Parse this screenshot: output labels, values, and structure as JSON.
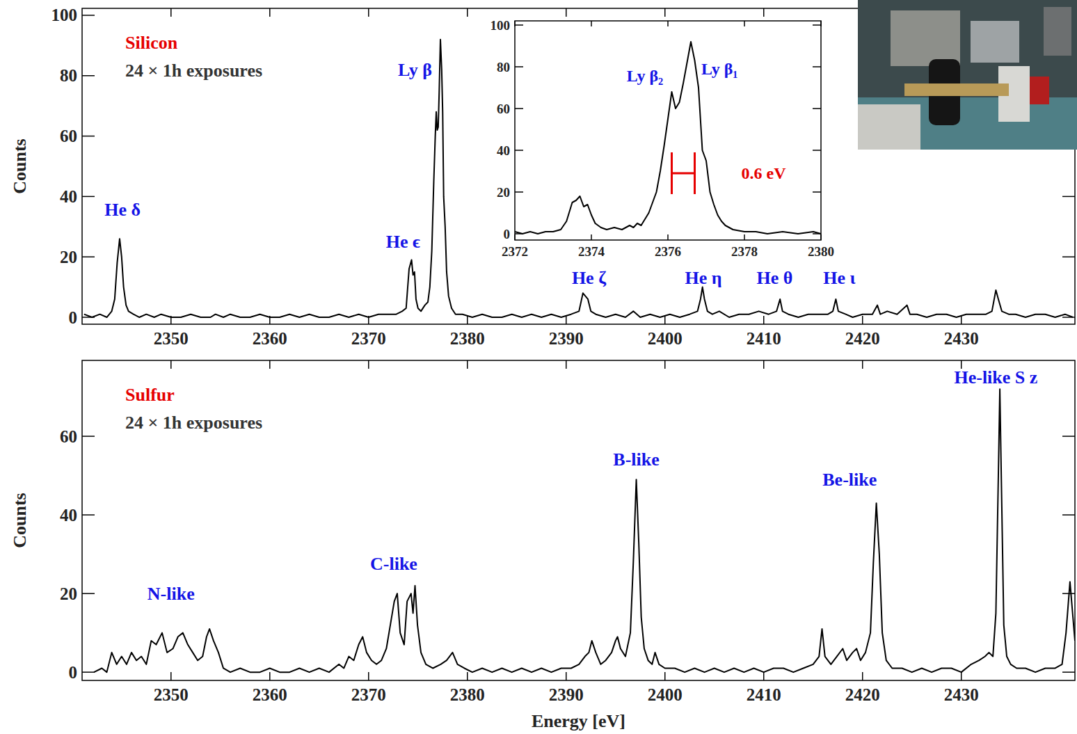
{
  "chart_data": [
    {
      "type": "line",
      "title": "Silicon",
      "subtitle": "24 × 1h exposures",
      "y_label": "Counts",
      "color": "#000000",
      "xlim": [
        2341,
        2441.5
      ],
      "ylim": [
        -2.3,
        102.3
      ],
      "xticks": [
        2350,
        2360,
        2370,
        2380,
        2390,
        2400,
        2410,
        2420,
        2430
      ],
      "yticks": [
        0,
        20,
        40,
        60,
        80,
        100
      ],
      "x": [
        2341.2,
        2342,
        2342.8,
        2343.5,
        2344.0,
        2344.3,
        2344.55,
        2344.8,
        2345.0,
        2345.2,
        2345.45,
        2345.7,
        2346.2,
        2346.8,
        2347.5,
        2348.3,
        2349,
        2350,
        2351,
        2352,
        2353,
        2354,
        2354.5,
        2355.3,
        2356,
        2357,
        2358,
        2359,
        2360,
        2361,
        2362,
        2363,
        2364,
        2365,
        2366,
        2367,
        2368,
        2369,
        2370,
        2371,
        2372,
        2372.8,
        2373.4,
        2373.8,
        2374.1,
        2374.35,
        2374.5,
        2374.65,
        2374.8,
        2375.0,
        2375.3,
        2375.7,
        2376.0,
        2376.2,
        2376.4,
        2376.6,
        2376.75,
        2376.85,
        2376.95,
        2377.05,
        2377.15,
        2377.27,
        2377.4,
        2377.5,
        2377.6,
        2377.75,
        2377.9,
        2378.1,
        2378.4,
        2378.8,
        2379.5,
        2380.5,
        2381.5,
        2382.5,
        2383.5,
        2384.5,
        2385.5,
        2386.5,
        2387.5,
        2388.5,
        2389.5,
        2390.5,
        2391.3,
        2391.7,
        2391.95,
        2392.2,
        2392.5,
        2393,
        2394,
        2395,
        2396,
        2396.8,
        2397.5,
        2398.5,
        2399.5,
        2400.5,
        2401.5,
        2402.5,
        2403.3,
        2403.6,
        2403.8,
        2404.0,
        2404.3,
        2404.8,
        2405.5,
        2406.5,
        2407.5,
        2408.5,
        2409.5,
        2410.5,
        2411.3,
        2411.65,
        2411.9,
        2412.5,
        2413.5,
        2414.5,
        2415.5,
        2416.5,
        2417.0,
        2417.3,
        2417.55,
        2418.3,
        2419,
        2420,
        2421,
        2421.5,
        2421.8,
        2422.5,
        2423.5,
        2424.5,
        2424.8,
        2425.5,
        2426.5,
        2427.5,
        2428.5,
        2429.5,
        2430.5,
        2431.5,
        2432.5,
        2433.1,
        2433.5,
        2433.75,
        2434.1,
        2434.8,
        2435.5,
        2436.5,
        2437.5,
        2438.5,
        2439.5,
        2440.5,
        2441.3
      ],
      "values": [
        1,
        0,
        1,
        0,
        2,
        6,
        18,
        26,
        20,
        10,
        4,
        2,
        1,
        0,
        1,
        0,
        1,
        0,
        0,
        1,
        0,
        0,
        1,
        0,
        1,
        0,
        0,
        1,
        0,
        0,
        1,
        0,
        1,
        0,
        0,
        1,
        0,
        1,
        0,
        1,
        1,
        1,
        2,
        3,
        16,
        19,
        14,
        15,
        6,
        3,
        2,
        4,
        5,
        10,
        22,
        45,
        60,
        68,
        62,
        63,
        75,
        92,
        82,
        68,
        40,
        30,
        15,
        7,
        3,
        1,
        1,
        0,
        1,
        0,
        0,
        1,
        0,
        1,
        0,
        1,
        0,
        1,
        2,
        8,
        7,
        6,
        2,
        1,
        0,
        1,
        0,
        2,
        0,
        1,
        0,
        1,
        0,
        1,
        2,
        6,
        10,
        6,
        2,
        1,
        2,
        0,
        1,
        1,
        2,
        1,
        2,
        6,
        2,
        1,
        0,
        1,
        1,
        1,
        2,
        6,
        2,
        1,
        0,
        1,
        1,
        4,
        1,
        2,
        1,
        4,
        1,
        1,
        0,
        1,
        1,
        0,
        1,
        1,
        1,
        2,
        9,
        6,
        2,
        1,
        1,
        0,
        1,
        1,
        0,
        1,
        0
      ],
      "annotations": [
        {
          "text": "He δ",
          "x": 2345.1,
          "y": 35.5,
          "color": "#1414e6"
        },
        {
          "text": "He ϵ",
          "x": 2373.5,
          "y": 25,
          "color": "#1414e6"
        },
        {
          "text": "Ly β",
          "x": 2374.7,
          "y": 82,
          "color": "#1414e6"
        },
        {
          "text": "He ζ",
          "x": 2392.3,
          "y": 13,
          "color": "#1414e6"
        },
        {
          "text": "He η",
          "x": 2403.9,
          "y": 13,
          "color": "#1414e6"
        },
        {
          "text": "He θ",
          "x": 2411.1,
          "y": 13,
          "color": "#1414e6"
        },
        {
          "text": "He ι",
          "x": 2417.65,
          "y": 13,
          "color": "#1414e6"
        }
      ]
    },
    {
      "type": "line",
      "title": "Sulfur",
      "subtitle": "24 × 1h exposures",
      "y_label": "Counts",
      "x_label": "Energy [eV]",
      "color": "#000000",
      "xlim": [
        2341,
        2441.5
      ],
      "ylim": [
        -2.1,
        79.3
      ],
      "xticks": [
        2350,
        2360,
        2370,
        2380,
        2390,
        2400,
        2410,
        2420,
        2430
      ],
      "yticks": [
        0,
        20,
        40,
        60
      ],
      "x": [
        2342.2,
        2343,
        2343.5,
        2344,
        2344.5,
        2345,
        2345.5,
        2346,
        2346.5,
        2347,
        2347.5,
        2348,
        2348.5,
        2349.1,
        2349.6,
        2350.2,
        2350.7,
        2351.2,
        2351.7,
        2352.2,
        2352.7,
        2353.2,
        2353.6,
        2353.9,
        2354.3,
        2354.8,
        2355.3,
        2356,
        2357,
        2358,
        2359,
        2360,
        2361,
        2362,
        2363,
        2364,
        2365,
        2366,
        2367,
        2367.5,
        2368,
        2368.5,
        2369,
        2369.4,
        2369.8,
        2370.3,
        2370.8,
        2371.3,
        2371.8,
        2372.2,
        2372.6,
        2372.9,
        2373.2,
        2373.6,
        2373.9,
        2374.3,
        2374.5,
        2374.7,
        2374.95,
        2375.3,
        2375.8,
        2376.5,
        2377.3,
        2377.9,
        2378.5,
        2379,
        2379.7,
        2380.5,
        2381.5,
        2382.5,
        2383.5,
        2384.5,
        2385.5,
        2386.5,
        2387.5,
        2388.5,
        2389.5,
        2390.5,
        2391.3,
        2391.9,
        2392.3,
        2392.6,
        2393,
        2393.5,
        2394,
        2394.6,
        2395.0,
        2395.2,
        2395.5,
        2396,
        2396.5,
        2396.8,
        2397.1,
        2397.35,
        2397.6,
        2397.9,
        2398.3,
        2398.7,
        2399.0,
        2399.4,
        2400,
        2401,
        2402,
        2403,
        2404,
        2405,
        2406,
        2407,
        2408,
        2409,
        2410,
        2411,
        2412,
        2413,
        2414,
        2415,
        2415.6,
        2415.9,
        2416.2,
        2416.8,
        2417.4,
        2418.0,
        2418.4,
        2419.0,
        2419.4,
        2419.8,
        2420.3,
        2420.8,
        2421.1,
        2421.4,
        2421.7,
        2422.0,
        2422.4,
        2423,
        2424,
        2425,
        2426,
        2427,
        2428,
        2429,
        2430,
        2431,
        2431.8,
        2432.4,
        2432.8,
        2433.2,
        2433.5,
        2433.75,
        2433.9,
        2434.1,
        2434.3,
        2434.6,
        2435,
        2435.6,
        2436.5,
        2437.5,
        2438.5,
        2439.5,
        2440.2,
        2440.6,
        2441.0,
        2441.3,
        2441.5
      ],
      "values": [
        0,
        1,
        0,
        5,
        2,
        4,
        2,
        5,
        3,
        4,
        2,
        8,
        7,
        10,
        5,
        6,
        9,
        10,
        7,
        5,
        3,
        4,
        9,
        11,
        8,
        5,
        1,
        0,
        1,
        0,
        0,
        1,
        0,
        0,
        1,
        0,
        1,
        0,
        2,
        1,
        4,
        3,
        7,
        9,
        5,
        3,
        2,
        3,
        6,
        12,
        18,
        20,
        10,
        7,
        18,
        20,
        15,
        22,
        12,
        5,
        2,
        1,
        2,
        3,
        5,
        2,
        1,
        0,
        1,
        0,
        1,
        0,
        1,
        0,
        1,
        0,
        1,
        1,
        2,
        4,
        5,
        8,
        5,
        2,
        3,
        5,
        8,
        9,
        6,
        4,
        10,
        28,
        49,
        33,
        14,
        6,
        3,
        2,
        5,
        2,
        1,
        1,
        0,
        1,
        0,
        1,
        0,
        1,
        0,
        1,
        0,
        1,
        1,
        0,
        1,
        2,
        4,
        11,
        4,
        2,
        4,
        6,
        3,
        5,
        6,
        3,
        5,
        10,
        28,
        43,
        30,
        10,
        3,
        1,
        1,
        0,
        1,
        0,
        1,
        1,
        0,
        2,
        3,
        4,
        5,
        4,
        15,
        50,
        72,
        42,
        12,
        4,
        2,
        1,
        1,
        0,
        1,
        1,
        2,
        10,
        23,
        14,
        8
      ],
      "annotations": [
        {
          "text": "N-like",
          "x": 2350,
          "y": 20,
          "color": "#1414e6"
        },
        {
          "text": "C-like",
          "x": 2372.55,
          "y": 27.5,
          "color": "#1414e6"
        },
        {
          "text": "B-like",
          "x": 2397.1,
          "y": 54,
          "color": "#1414e6"
        },
        {
          "text": "Be-like",
          "x": 2418.7,
          "y": 49,
          "color": "#1414e6"
        },
        {
          "text": "He-like S z",
          "x": 2433.5,
          "y": 75,
          "color": "#1414e6"
        }
      ]
    },
    {
      "type": "line",
      "color": "#000000",
      "xlim": [
        2372,
        2380
      ],
      "ylim": [
        -3,
        102
      ],
      "xticks": [
        2372,
        2374,
        2376,
        2378,
        2380
      ],
      "yticks": [
        0,
        20,
        40,
        60,
        80,
        100
      ],
      "x": [
        2372,
        2372.2,
        2372.4,
        2372.6,
        2372.8,
        2373,
        2373.2,
        2373.35,
        2373.5,
        2373.6,
        2373.7,
        2373.8,
        2373.9,
        2374,
        2374.1,
        2374.25,
        2374.4,
        2374.6,
        2374.8,
        2375,
        2375.1,
        2375.2,
        2375.3,
        2375.4,
        2375.5,
        2375.6,
        2375.7,
        2375.8,
        2375.9,
        2376,
        2376.1,
        2376.2,
        2376.3,
        2376.4,
        2376.5,
        2376.6,
        2376.7,
        2376.8,
        2376.85,
        2376.9,
        2377,
        2377.1,
        2377.2,
        2377.3,
        2377.4,
        2377.5,
        2377.7,
        2378,
        2378.3,
        2378.6,
        2379,
        2379.4,
        2379.8,
        2380
      ],
      "values": [
        1,
        0,
        1,
        0,
        1,
        1,
        2,
        6,
        15,
        16,
        18,
        13,
        14,
        9,
        5,
        3,
        2,
        3,
        2,
        4,
        3,
        5,
        4,
        7,
        10,
        15,
        20,
        30,
        42,
        55,
        68,
        60,
        63,
        72,
        82,
        92,
        83,
        70,
        55,
        40,
        35,
        20,
        14,
        9,
        6,
        4,
        2,
        1,
        1,
        0,
        1,
        0,
        1,
        0
      ],
      "scale_bar": {
        "value": 0.6,
        "x": 2376.1,
        "y": 29
      },
      "annotations": [
        {
          "text": "Ly β₂",
          "x": 2375.4,
          "y": 75.6,
          "color": "#1414e6"
        },
        {
          "text": "Ly β₁",
          "x": 2377.35,
          "y": 79,
          "color": "#1414e6"
        },
        {
          "text": "0.6 eV",
          "x": 2378.5,
          "y": 29,
          "color": "#e60000"
        }
      ]
    }
  ]
}
